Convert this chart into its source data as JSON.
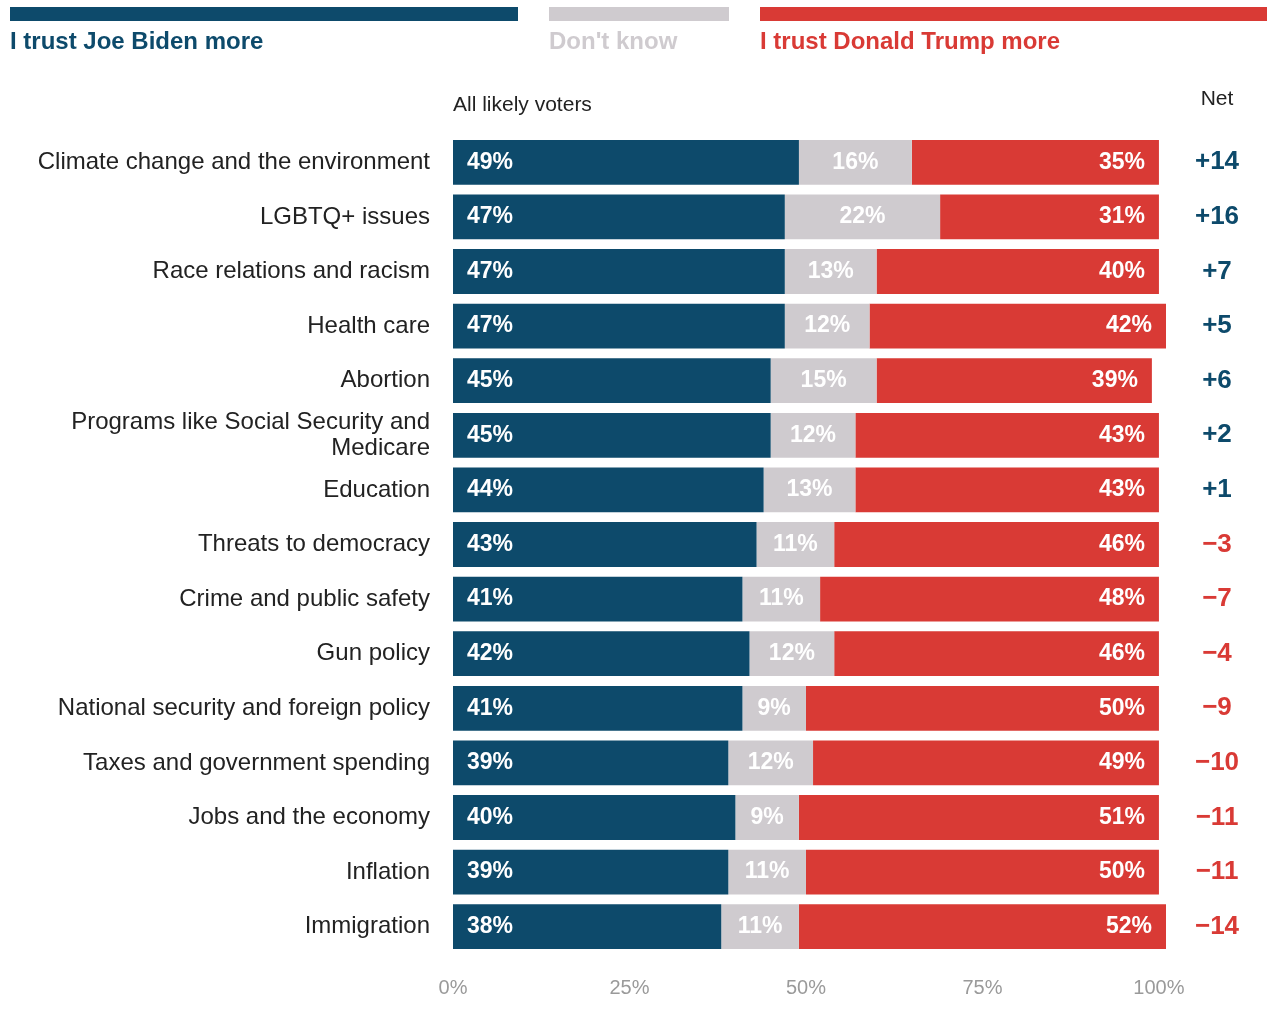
{
  "chart_data": {
    "type": "bar",
    "orientation": "horizontal",
    "stacked": true,
    "subtitle": "All likely voters",
    "legend": "top",
    "grid": false,
    "categories": [
      "Climate change and the environment",
      "LGBTQ+ issues",
      "Race relations and racism",
      "Health care",
      "Abortion",
      "Programs like Social Security and Medicare",
      "Education",
      "Threats to democracy",
      "Crime and public safety",
      "Gun policy",
      "National security and foreign policy",
      "Taxes and government spending",
      "Jobs and the economy",
      "Inflation",
      "Immigration"
    ],
    "series": [
      {
        "name": "I trust Joe Biden more",
        "color": "#0d4a6b",
        "values": [
          49,
          47,
          47,
          47,
          45,
          45,
          44,
          43,
          41,
          42,
          41,
          39,
          40,
          39,
          38
        ],
        "value_labels": [
          "49%",
          "47%",
          "47%",
          "47%",
          "45%",
          "45%",
          "44%",
          "43%",
          "41%",
          "42%",
          "41%",
          "39%",
          "40%",
          "39%",
          "38%"
        ]
      },
      {
        "name": "Don't know",
        "color": "#cfcbcf",
        "values": [
          16,
          22,
          13,
          12,
          15,
          12,
          13,
          11,
          11,
          12,
          9,
          12,
          9,
          11,
          11
        ],
        "value_labels": [
          "16%",
          "22%",
          "13%",
          "12%",
          "15%",
          "12%",
          "13%",
          "11%",
          "11%",
          "12%",
          "9%",
          "12%",
          "9%",
          "11%",
          "11%"
        ]
      },
      {
        "name": "I trust Donald Trump more",
        "color": "#d93a35",
        "values": [
          35,
          31,
          40,
          42,
          39,
          43,
          43,
          46,
          48,
          46,
          50,
          49,
          51,
          50,
          52
        ],
        "value_labels": [
          "35%",
          "31%",
          "40%",
          "42%",
          "39%",
          "43%",
          "43%",
          "46%",
          "48%",
          "46%",
          "50%",
          "49%",
          "51%",
          "50%",
          "52%"
        ]
      }
    ],
    "xlim": [
      0,
      101
    ],
    "xticks": [
      {
        "value": 0,
        "label": "0%"
      },
      {
        "value": 25,
        "label": "25%"
      },
      {
        "value": 50,
        "label": "50%"
      },
      {
        "value": 75,
        "label": "75%"
      },
      {
        "value": 100,
        "label": "100%"
      }
    ],
    "annotations": [
      "Net",
      "+14",
      "+16",
      "+7",
      "+5",
      "+6",
      "+2",
      "+1",
      "−3",
      "−7",
      "−4",
      "−9",
      "−10",
      "−11",
      "−11",
      "−14"
    ]
  }
}
